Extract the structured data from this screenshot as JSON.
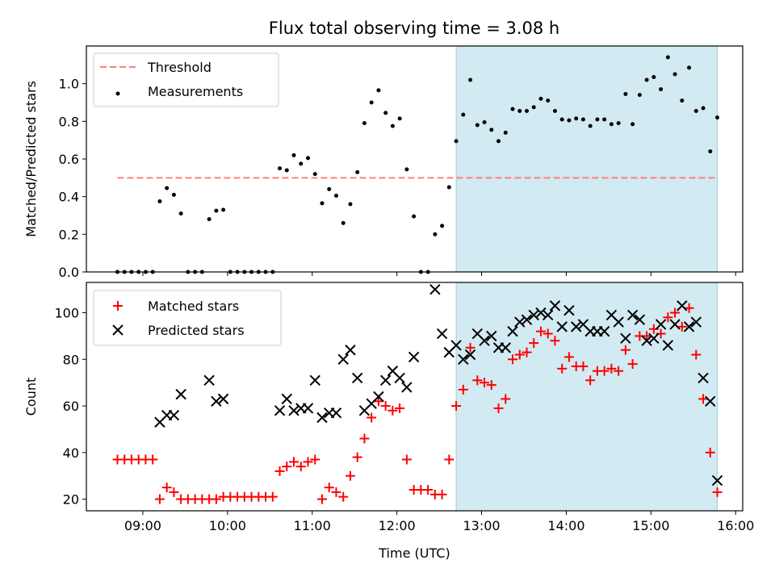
{
  "figure_title": "Flux total observing time = 3.08 h",
  "colors": {
    "threshold": "#ff7f7f",
    "measurements": "#000000",
    "matched": "#ff0000",
    "predicted": "#000000",
    "highlight": "#add8e6"
  },
  "chart_data": [
    {
      "type": "scatter",
      "ylabel": "Matched/Predicted stars",
      "xlim": [
        "08:20",
        "16:05"
      ],
      "ylim": [
        0,
        1.2
      ],
      "yticks": [
        "0.0",
        "0.2",
        "0.4",
        "0.6",
        "0.8",
        "1.0"
      ],
      "highlight_span": [
        "12:42",
        "15:47"
      ],
      "legend_position": "upper-left",
      "threshold": {
        "name": "Threshold",
        "y": 0.5,
        "x": [
          "08:42",
          "15:47"
        ]
      },
      "series": [
        {
          "name": "Measurements",
          "points": [
            [
              "08:42",
              0
            ],
            [
              "08:47",
              0
            ],
            [
              "08:52",
              0
            ],
            [
              "08:57",
              0
            ],
            [
              "09:02",
              0
            ],
            [
              "09:07",
              0
            ],
            [
              "09:12",
              0.375
            ],
            [
              "09:17",
              0.445
            ],
            [
              "09:22",
              0.41
            ],
            [
              "09:27",
              0.31
            ],
            [
              "09:32",
              0
            ],
            [
              "09:37",
              0
            ],
            [
              "09:42",
              0
            ],
            [
              "09:47",
              0.28
            ],
            [
              "09:52",
              0.325
            ],
            [
              "09:57",
              0.33
            ],
            [
              "10:02",
              0
            ],
            [
              "10:07",
              0
            ],
            [
              "10:12",
              0
            ],
            [
              "10:17",
              0
            ],
            [
              "10:22",
              0
            ],
            [
              "10:27",
              0
            ],
            [
              "10:32",
              0
            ],
            [
              "10:37",
              0.55
            ],
            [
              "10:42",
              0.54
            ],
            [
              "10:47",
              0.62
            ],
            [
              "10:52",
              0.575
            ],
            [
              "10:57",
              0.605
            ],
            [
              "11:02",
              0.52
            ],
            [
              "11:07",
              0.365
            ],
            [
              "11:12",
              0.44
            ],
            [
              "11:17",
              0.405
            ],
            [
              "11:22",
              0.26
            ],
            [
              "11:27",
              0.36
            ],
            [
              "11:32",
              0.53
            ],
            [
              "11:37",
              0.79
            ],
            [
              "11:42",
              0.9
            ],
            [
              "11:47",
              0.965
            ],
            [
              "11:52",
              0.845
            ],
            [
              "11:57",
              0.775
            ],
            [
              "12:02",
              0.815
            ],
            [
              "12:07",
              0.545
            ],
            [
              "12:12",
              0.295
            ],
            [
              "12:17",
              0
            ],
            [
              "12:22",
              0
            ],
            [
              "12:27",
              0.2
            ],
            [
              "12:32",
              0.245
            ],
            [
              "12:37",
              0.45
            ],
            [
              "12:42",
              0.695
            ],
            [
              "12:47",
              0.835
            ],
            [
              "12:52",
              1.02
            ],
            [
              "12:57",
              0.78
            ],
            [
              "13:02",
              0.795
            ],
            [
              "13:07",
              0.755
            ],
            [
              "13:12",
              0.695
            ],
            [
              "13:17",
              0.74
            ],
            [
              "13:22",
              0.865
            ],
            [
              "13:27",
              0.855
            ],
            [
              "13:32",
              0.855
            ],
            [
              "13:37",
              0.875
            ],
            [
              "13:42",
              0.92
            ],
            [
              "13:47",
              0.91
            ],
            [
              "13:52",
              0.855
            ],
            [
              "13:57",
              0.81
            ],
            [
              "14:02",
              0.805
            ],
            [
              "14:07",
              0.815
            ],
            [
              "14:12",
              0.81
            ],
            [
              "14:17",
              0.775
            ],
            [
              "14:22",
              0.81
            ],
            [
              "14:27",
              0.81
            ],
            [
              "14:32",
              0.785
            ],
            [
              "14:37",
              0.79
            ],
            [
              "14:42",
              0.945
            ],
            [
              "14:47",
              0.785
            ],
            [
              "14:52",
              0.94
            ],
            [
              "14:57",
              1.02
            ],
            [
              "15:02",
              1.035
            ],
            [
              "15:07",
              0.97
            ],
            [
              "15:12",
              1.14
            ],
            [
              "15:17",
              1.05
            ],
            [
              "15:22",
              0.91
            ],
            [
              "15:27",
              1.085
            ],
            [
              "15:32",
              0.855
            ],
            [
              "15:37",
              0.87
            ],
            [
              "15:42",
              0.64
            ],
            [
              "15:47",
              0.82
            ]
          ]
        }
      ]
    },
    {
      "type": "scatter",
      "xlabel": "Time (UTC)",
      "ylabel": "Count",
      "xlim": [
        "08:20",
        "16:05"
      ],
      "xticks": [
        "09:00",
        "10:00",
        "11:00",
        "12:00",
        "13:00",
        "14:00",
        "15:00",
        "16:00"
      ],
      "ylim": [
        15,
        113
      ],
      "yticks": [
        "20",
        "40",
        "60",
        "80",
        "100"
      ],
      "highlight_span": [
        "12:42",
        "15:47"
      ],
      "legend_position": "upper-left",
      "series": [
        {
          "name": "Matched stars",
          "marker": "+",
          "points": [
            [
              "08:42",
              37
            ],
            [
              "08:47",
              37
            ],
            [
              "08:52",
              37
            ],
            [
              "08:57",
              37
            ],
            [
              "09:02",
              37
            ],
            [
              "09:07",
              37
            ],
            [
              "09:12",
              20
            ],
            [
              "09:17",
              25
            ],
            [
              "09:22",
              23
            ],
            [
              "09:27",
              20
            ],
            [
              "09:32",
              20
            ],
            [
              "09:37",
              20
            ],
            [
              "09:42",
              20
            ],
            [
              "09:47",
              20
            ],
            [
              "09:52",
              20
            ],
            [
              "09:57",
              21
            ],
            [
              "10:02",
              21
            ],
            [
              "10:07",
              21
            ],
            [
              "10:12",
              21
            ],
            [
              "10:17",
              21
            ],
            [
              "10:22",
              21
            ],
            [
              "10:27",
              21
            ],
            [
              "10:32",
              21
            ],
            [
              "10:37",
              32
            ],
            [
              "10:42",
              34
            ],
            [
              "10:47",
              36
            ],
            [
              "10:52",
              34
            ],
            [
              "10:57",
              36
            ],
            [
              "11:02",
              37
            ],
            [
              "11:07",
              20
            ],
            [
              "11:12",
              25
            ],
            [
              "11:17",
              23
            ],
            [
              "11:22",
              21
            ],
            [
              "11:27",
              30
            ],
            [
              "11:32",
              38
            ],
            [
              "11:37",
              46
            ],
            [
              "11:42",
              55
            ],
            [
              "11:47",
              62
            ],
            [
              "11:52",
              60
            ],
            [
              "11:57",
              58
            ],
            [
              "12:02",
              59
            ],
            [
              "12:07",
              37
            ],
            [
              "12:12",
              24
            ],
            [
              "12:17",
              24
            ],
            [
              "12:22",
              24
            ],
            [
              "12:27",
              22
            ],
            [
              "12:32",
              22
            ],
            [
              "12:37",
              37
            ],
            [
              "12:42",
              60
            ],
            [
              "12:47",
              67
            ],
            [
              "12:52",
              85
            ],
            [
              "12:57",
              71
            ],
            [
              "13:02",
              70
            ],
            [
              "13:07",
              69
            ],
            [
              "13:12",
              59
            ],
            [
              "13:17",
              63
            ],
            [
              "13:22",
              80
            ],
            [
              "13:27",
              82
            ],
            [
              "13:32",
              83
            ],
            [
              "13:37",
              87
            ],
            [
              "13:42",
              92
            ],
            [
              "13:47",
              91
            ],
            [
              "13:52",
              88
            ],
            [
              "13:57",
              76
            ],
            [
              "14:02",
              81
            ],
            [
              "14:07",
              77
            ],
            [
              "14:12",
              77
            ],
            [
              "14:17",
              71
            ],
            [
              "14:22",
              75
            ],
            [
              "14:27",
              75
            ],
            [
              "14:32",
              76
            ],
            [
              "14:37",
              75
            ],
            [
              "14:42",
              84
            ],
            [
              "14:47",
              78
            ],
            [
              "14:52",
              90
            ],
            [
              "14:57",
              90
            ],
            [
              "15:02",
              93
            ],
            [
              "15:07",
              91
            ],
            [
              "15:12",
              98
            ],
            [
              "15:17",
              100
            ],
            [
              "15:22",
              94
            ],
            [
              "15:27",
              102
            ],
            [
              "15:32",
              82
            ],
            [
              "15:37",
              63
            ],
            [
              "15:42",
              40
            ],
            [
              "15:47",
              23
            ]
          ]
        },
        {
          "name": "Predicted stars",
          "marker": "x",
          "points": [
            [
              "09:12",
              53
            ],
            [
              "09:17",
              56
            ],
            [
              "09:22",
              56
            ],
            [
              "09:27",
              65
            ],
            [
              "09:47",
              71
            ],
            [
              "09:52",
              62
            ],
            [
              "09:57",
              63
            ],
            [
              "10:37",
              58
            ],
            [
              "10:42",
              63
            ],
            [
              "10:47",
              58
            ],
            [
              "10:52",
              59
            ],
            [
              "10:57",
              59
            ],
            [
              "11:02",
              71
            ],
            [
              "11:07",
              55
            ],
            [
              "11:12",
              57
            ],
            [
              "11:17",
              57
            ],
            [
              "11:22",
              80
            ],
            [
              "11:27",
              84
            ],
            [
              "11:32",
              72
            ],
            [
              "11:37",
              58
            ],
            [
              "11:42",
              61
            ],
            [
              "11:47",
              64
            ],
            [
              "11:52",
              71
            ],
            [
              "11:57",
              75
            ],
            [
              "12:02",
              72
            ],
            [
              "12:07",
              68
            ],
            [
              "12:12",
              81
            ],
            [
              "12:27",
              110
            ],
            [
              "12:32",
              91
            ],
            [
              "12:37",
              83
            ],
            [
              "12:42",
              86
            ],
            [
              "12:47",
              80
            ],
            [
              "12:52",
              82
            ],
            [
              "12:57",
              91
            ],
            [
              "13:02",
              88
            ],
            [
              "13:07",
              90
            ],
            [
              "13:12",
              85
            ],
            [
              "13:17",
              85
            ],
            [
              "13:22",
              92
            ],
            [
              "13:27",
              96
            ],
            [
              "13:32",
              97
            ],
            [
              "13:37",
              99
            ],
            [
              "13:42",
              100
            ],
            [
              "13:47",
              99
            ],
            [
              "13:52",
              103
            ],
            [
              "13:57",
              94
            ],
            [
              "14:02",
              101
            ],
            [
              "14:07",
              94
            ],
            [
              "14:12",
              95
            ],
            [
              "14:17",
              92
            ],
            [
              "14:22",
              92
            ],
            [
              "14:27",
              92
            ],
            [
              "14:32",
              99
            ],
            [
              "14:37",
              96
            ],
            [
              "14:42",
              89
            ],
            [
              "14:47",
              99
            ],
            [
              "14:52",
              97
            ],
            [
              "14:57",
              88
            ],
            [
              "15:02",
              89
            ],
            [
              "15:07",
              95
            ],
            [
              "15:12",
              86
            ],
            [
              "15:17",
              95
            ],
            [
              "15:22",
              103
            ],
            [
              "15:27",
              94
            ],
            [
              "15:32",
              96
            ],
            [
              "15:37",
              72
            ],
            [
              "15:42",
              62
            ],
            [
              "15:47",
              28
            ]
          ]
        }
      ]
    }
  ]
}
